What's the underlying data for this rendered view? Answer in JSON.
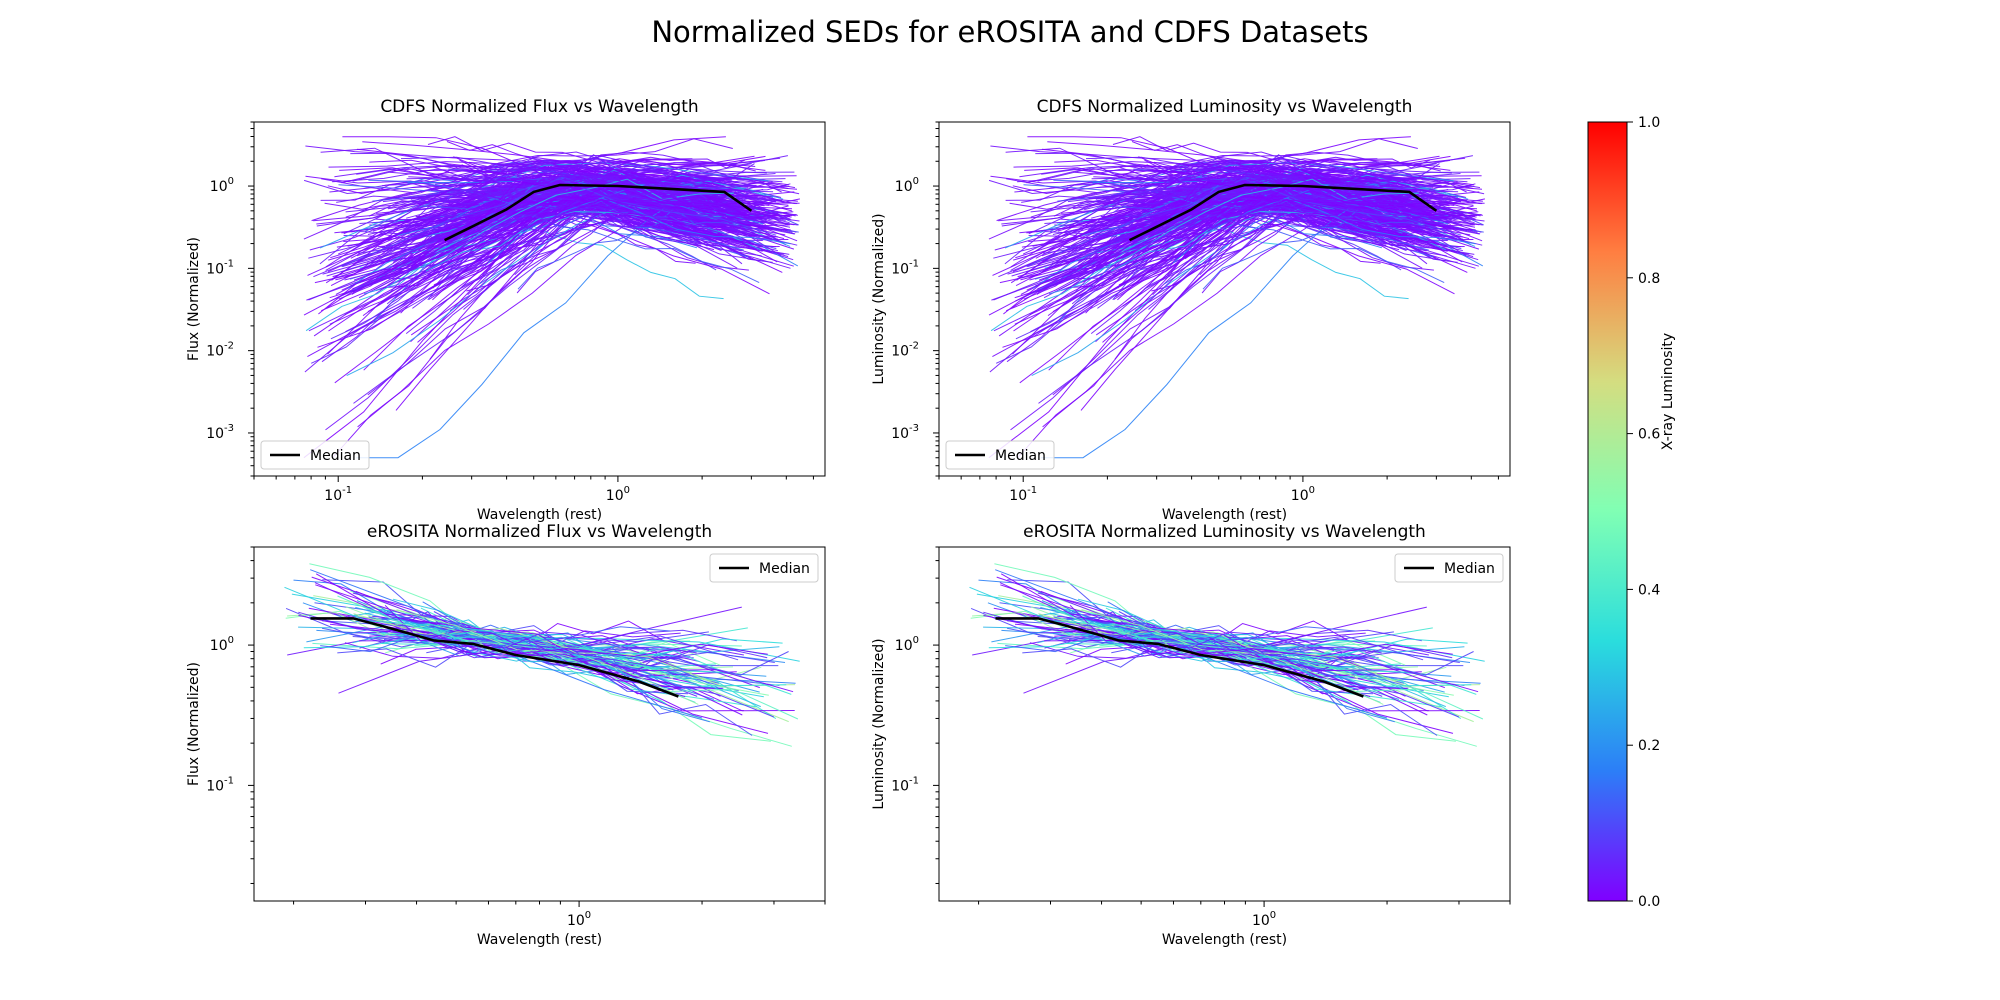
{
  "figure": {
    "title": "Normalized SEDs for eROSITA and CDFS Datasets"
  },
  "colorbar": {
    "label": "X-ray Luminosity",
    "min": 0.0,
    "max": 1.0,
    "ticks": [
      "0.0",
      "0.2",
      "0.4",
      "0.6",
      "0.8",
      "1.0"
    ],
    "colormap": "rainbow",
    "colormap_stops": [
      "#8000ff",
      "#2c7ef7",
      "#2adddd",
      "#80ffb4",
      "#d4dd80",
      "#ff7e41",
      "#ff0000"
    ]
  },
  "chart_data": [
    {
      "type": "line",
      "title": "CDFS Normalized Flux vs Wavelength",
      "xlabel": "Wavelength (rest)",
      "ylabel": "Flux (Normalized)",
      "xscale": "log",
      "yscale": "log",
      "xlim": [
        0.05,
        5.5
      ],
      "ylim": [
        0.0003,
        6.0
      ],
      "x_tick_labels": [
        "10^-1",
        "10^0"
      ],
      "y_tick_labels": [
        "10^-3",
        "10^-2",
        "10^-1",
        "10^0"
      ],
      "legend": {
        "entries": [
          "Median"
        ],
        "placement": "lower-left"
      },
      "median": {
        "name": "Median",
        "color": "#000000",
        "x": [
          0.24,
          0.3,
          0.4,
          0.5,
          0.62,
          1.0,
          2.4,
          3.0
        ],
        "y": [
          0.22,
          0.32,
          0.52,
          0.85,
          1.03,
          1.0,
          0.85,
          0.5
        ]
      },
      "sed_lines": {
        "count_approx": 600,
        "dominant_color_value": 0.0,
        "x_range": [
          0.07,
          4.5
        ],
        "y_range": [
          0.0005,
          4.0
        ]
      }
    },
    {
      "type": "line",
      "title": "CDFS Normalized Luminosity vs Wavelength",
      "xlabel": "Wavelength (rest)",
      "ylabel": "Luminosity (Normalized)",
      "xscale": "log",
      "yscale": "log",
      "xlim": [
        0.05,
        5.5
      ],
      "ylim": [
        0.0003,
        6.0
      ],
      "x_tick_labels": [
        "10^-1",
        "10^0"
      ],
      "y_tick_labels": [
        "10^-3",
        "10^-2",
        "10^-1",
        "10^0"
      ],
      "legend": {
        "entries": [
          "Median"
        ],
        "placement": "lower-left"
      },
      "median": {
        "name": "Median",
        "color": "#000000",
        "x": [
          0.24,
          0.3,
          0.4,
          0.5,
          0.62,
          1.0,
          2.4,
          3.0
        ],
        "y": [
          0.22,
          0.32,
          0.52,
          0.85,
          1.03,
          1.0,
          0.85,
          0.5
        ]
      },
      "sed_lines": {
        "count_approx": 600,
        "dominant_color_value": 0.0,
        "x_range": [
          0.07,
          4.5
        ],
        "y_range": [
          0.0005,
          4.0
        ]
      }
    },
    {
      "type": "line",
      "title": "eROSITA Normalized Flux vs Wavelength",
      "xlabel": "Wavelength (rest)",
      "ylabel": "Flux (Normalized)",
      "xscale": "log",
      "yscale": "log",
      "xlim": [
        0.16,
        4.0
      ],
      "ylim": [
        0.015,
        5.0
      ],
      "x_tick_labels": [
        "10^0"
      ],
      "y_tick_labels": [
        "10^-1",
        "10^0"
      ],
      "legend": {
        "entries": [
          "Median"
        ],
        "placement": "upper-right"
      },
      "median": {
        "name": "Median",
        "color": "#000000",
        "x": [
          0.22,
          0.28,
          0.32,
          0.38,
          0.44,
          0.55,
          0.7,
          1.0,
          1.4,
          1.75
        ],
        "y": [
          1.55,
          1.55,
          1.4,
          1.22,
          1.08,
          1.02,
          0.85,
          0.72,
          0.55,
          0.43
        ]
      },
      "sed_lines": {
        "count_approx": 90,
        "x_range": [
          0.19,
          3.6
        ],
        "y_range": [
          0.017,
          3.8
        ]
      }
    },
    {
      "type": "line",
      "title": "eROSITA Normalized Luminosity vs Wavelength",
      "xlabel": "Wavelength (rest)",
      "ylabel": "Luminosity (Normalized)",
      "xscale": "log",
      "yscale": "log",
      "xlim": [
        0.16,
        4.0
      ],
      "ylim": [
        0.015,
        5.0
      ],
      "x_tick_labels": [
        "10^0"
      ],
      "y_tick_labels": [
        "10^-1",
        "10^0"
      ],
      "legend": {
        "entries": [
          "Median"
        ],
        "placement": "upper-right"
      },
      "median": {
        "name": "Median",
        "color": "#000000",
        "x": [
          0.22,
          0.28,
          0.32,
          0.38,
          0.44,
          0.55,
          0.7,
          1.0,
          1.4,
          1.75
        ],
        "y": [
          1.55,
          1.55,
          1.4,
          1.22,
          1.08,
          1.02,
          0.85,
          0.72,
          0.55,
          0.43
        ]
      },
      "sed_lines": {
        "count_approx": 90,
        "x_range": [
          0.19,
          3.6
        ],
        "y_range": [
          0.017,
          3.8
        ]
      }
    }
  ]
}
